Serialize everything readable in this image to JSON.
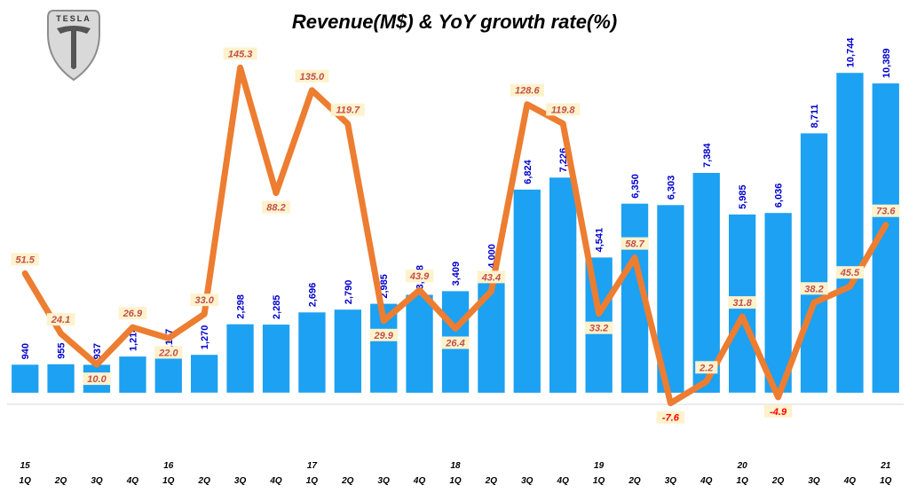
{
  "colors": {
    "bar": "#1da1f2",
    "line": "#ed7d31",
    "revenue_label": "#0000cc",
    "growth_label_text": "#c0504d",
    "growth_label_negative": "#ff0000",
    "growth_label_bg": "#fff2cc"
  },
  "logo": {
    "text": "TESLA",
    "icon": "tesla-shield-logo"
  },
  "chart_data": {
    "type": "bar",
    "title": "Revenue(M$) & YoY growth rate(%)",
    "categories": [
      "1Q",
      "2Q",
      "3Q",
      "4Q",
      "1Q",
      "2Q",
      "3Q",
      "4Q",
      "1Q",
      "2Q",
      "3Q",
      "4Q",
      "1Q",
      "2Q",
      "3Q",
      "4Q",
      "1Q",
      "2Q",
      "3Q",
      "4Q",
      "1Q",
      "2Q",
      "3Q",
      "4Q",
      "1Q"
    ],
    "year_labels": [
      "15",
      "",
      "",
      "",
      "16",
      "",
      "",
      "",
      "17",
      "",
      "",
      "",
      "18",
      "",
      "",
      "",
      "19",
      "",
      "",
      "",
      "20",
      "",
      "",
      "",
      "21"
    ],
    "series": [
      {
        "name": "Revenue(M$)",
        "type": "bar",
        "values": [
          940,
          955,
          937,
          1214,
          1147,
          1270,
          2298,
          2285,
          2696,
          2790,
          2985,
          3288,
          3409,
          4000,
          6824,
          7226,
          4541,
          6350,
          6303,
          7384,
          5985,
          6036,
          8711,
          10744,
          10389
        ],
        "labels": [
          "940",
          "955",
          "937",
          "1,214",
          "1,147",
          "1,270",
          "2,298",
          "2,285",
          "2,696",
          "2,790",
          "2,985",
          "3,288",
          "3,409",
          "4,000",
          "6,824",
          "7,226",
          "4,541",
          "6,350",
          "6,303",
          "7,384",
          "5,985",
          "6,036",
          "8,711",
          "10,744",
          "10,389"
        ],
        "ylim": [
          -2000,
          12000
        ]
      },
      {
        "name": "YoY growth rate(%)",
        "type": "line",
        "values": [
          51.5,
          24.1,
          10.0,
          26.9,
          22.0,
          33.0,
          145.3,
          88.2,
          135.0,
          119.7,
          29.9,
          43.9,
          26.4,
          43.4,
          128.6,
          119.8,
          33.2,
          58.7,
          -7.6,
          2.2,
          31.8,
          -4.9,
          38.2,
          45.5,
          73.6
        ],
        "labels": [
          "51.5",
          "24.1",
          "10.0",
          "26.9",
          "22.0",
          "33.0",
          "145.3",
          "88.2",
          "135.0",
          "119.7",
          "29.9",
          "43.9",
          "26.4",
          "43.4",
          "128.6",
          "119.8",
          "33.2",
          "58.7",
          "-7.6",
          "2.2",
          "31.8",
          "-4.9",
          "38.2",
          "45.5",
          "73.6"
        ],
        "ylim": [
          -30,
          160
        ]
      }
    ],
    "xlabel": "",
    "ylabel": "",
    "grid": false,
    "legend": "none"
  }
}
